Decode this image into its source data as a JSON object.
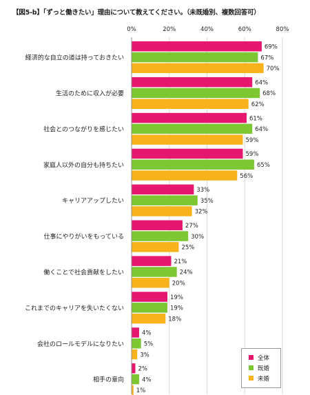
{
  "title": "【図5-b】「ずっと働きたい」理由について教えてください。（未既婚別、複数回答可）",
  "chart_data": {
    "type": "bar",
    "orientation": "horizontal",
    "xlim": [
      0,
      80
    ],
    "x_ticks": [
      "0%",
      "20%",
      "40%",
      "60%",
      "80%"
    ],
    "x_tick_values": [
      0,
      20,
      40,
      60,
      80
    ],
    "grid": true,
    "legend_position": "bottom-right",
    "categories": [
      "経済的な自立の道は持っておきたい",
      "生活のために収入が必要",
      "社会とのつながりを感じたい",
      "家庭人以外の自分も持ちたい",
      "キャリアアップしたい",
      "仕事にやりがいをもっている",
      "働くことで社会貢献をしたい",
      "これまでのキャリアを失いたくない",
      "会社のロールモデルになりたい",
      "相手の意向"
    ],
    "series": [
      {
        "name": "全体",
        "color": "#e5176f",
        "values": [
          69,
          64,
          61,
          59,
          33,
          27,
          21,
          19,
          4,
          2
        ]
      },
      {
        "name": "既婚",
        "color": "#7dc733",
        "values": [
          67,
          68,
          64,
          65,
          35,
          30,
          24,
          19,
          5,
          4
        ]
      },
      {
        "name": "未婚",
        "color": "#f7b21c",
        "values": [
          70,
          62,
          59,
          56,
          32,
          25,
          20,
          18,
          3,
          1
        ]
      }
    ],
    "value_suffix": "%"
  }
}
